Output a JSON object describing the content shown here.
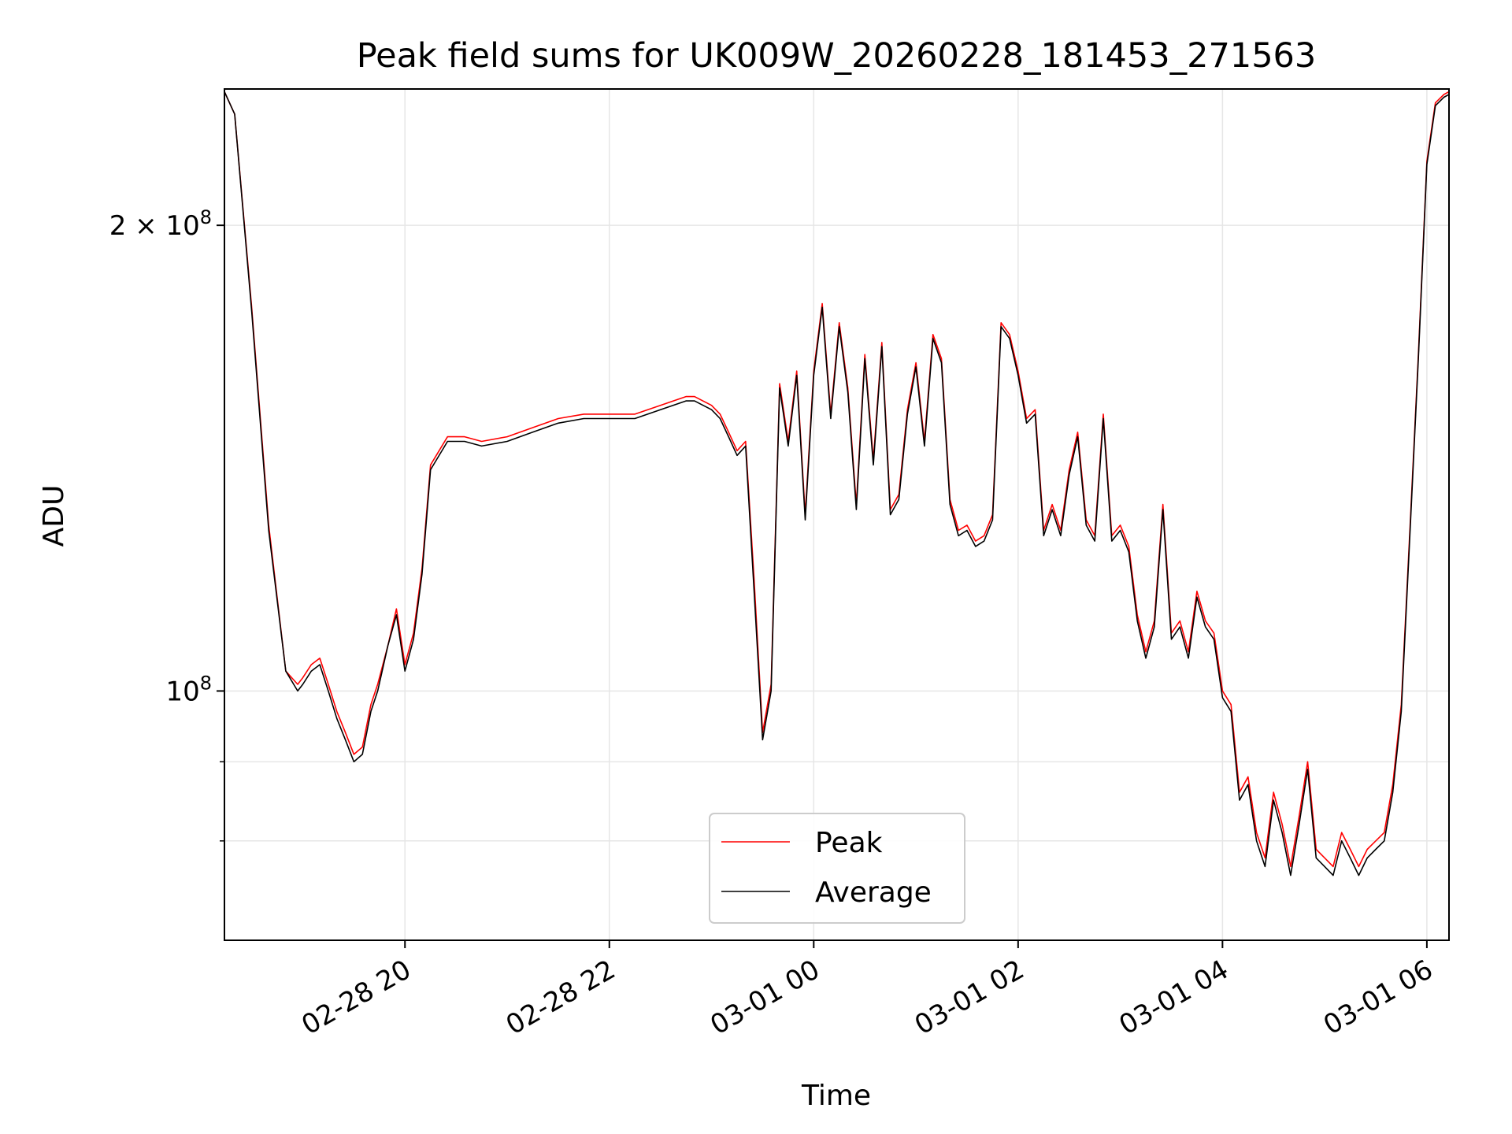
{
  "chart_data": {
    "type": "line",
    "title": "Peak field sums for UK009W_20260228_181453_271563",
    "xlabel": "Time",
    "ylabel": "ADU",
    "x_scale": "time",
    "y_scale": "log",
    "xlim": [
      "2026-02-28 18:14",
      "2026-03-01 06:13"
    ],
    "ylim": [
      69000000,
      245000000
    ],
    "x_ticks": [
      {
        "value": "2026-02-28 20:00",
        "label": "02-28 20"
      },
      {
        "value": "2026-02-28 22:00",
        "label": "02-28 22"
      },
      {
        "value": "2026-03-01 00:00",
        "label": "03-01 00"
      },
      {
        "value": "2026-03-01 02:00",
        "label": "03-01 02"
      },
      {
        "value": "2026-03-01 04:00",
        "label": "03-01 04"
      },
      {
        "value": "2026-03-01 06:00",
        "label": "03-01 06"
      }
    ],
    "y_major_ticks": [
      {
        "value": 100000000,
        "base": "10",
        "exponent": "8"
      },
      {
        "value": 200000000,
        "mantissa": "2",
        "base": "10",
        "exponent": "8"
      }
    ],
    "y_minor_ticks": [
      80000000,
      90000000
    ],
    "grid": true,
    "legend_position": "lower center",
    "colors": {
      "peak": "#ff0000",
      "average": "#000000",
      "grid": "#e6e6e6"
    },
    "x": [
      "2026-02-28 18:14",
      "2026-02-28 18:20",
      "2026-02-28 18:30",
      "2026-02-28 18:40",
      "2026-02-28 18:50",
      "2026-02-28 18:57",
      "2026-02-28 19:00",
      "2026-02-28 19:05",
      "2026-02-28 19:10",
      "2026-02-28 19:15",
      "2026-02-28 19:20",
      "2026-02-28 19:25",
      "2026-02-28 19:30",
      "2026-02-28 19:35",
      "2026-02-28 19:40",
      "2026-02-28 19:44",
      "2026-02-28 19:50",
      "2026-02-28 19:55",
      "2026-02-28 20:00",
      "2026-02-28 20:05",
      "2026-02-28 20:10",
      "2026-02-28 20:15",
      "2026-02-28 20:25",
      "2026-02-28 20:35",
      "2026-02-28 20:45",
      "2026-02-28 21:00",
      "2026-02-28 21:15",
      "2026-02-28 21:30",
      "2026-02-28 21:45",
      "2026-02-28 22:00",
      "2026-02-28 22:15",
      "2026-02-28 22:30",
      "2026-02-28 22:45",
      "2026-02-28 22:50",
      "2026-02-28 23:00",
      "2026-02-28 23:05",
      "2026-02-28 23:10",
      "2026-02-28 23:15",
      "2026-02-28 23:20",
      "2026-02-28 23:25",
      "2026-02-28 23:30",
      "2026-02-28 23:35",
      "2026-02-28 23:40",
      "2026-02-28 23:45",
      "2026-02-28 23:50",
      "2026-02-28 23:55",
      "2026-03-01 00:00",
      "2026-03-01 00:05",
      "2026-03-01 00:10",
      "2026-03-01 00:15",
      "2026-03-01 00:20",
      "2026-03-01 00:25",
      "2026-03-01 00:30",
      "2026-03-01 00:35",
      "2026-03-01 00:40",
      "2026-03-01 00:45",
      "2026-03-01 00:50",
      "2026-03-01 00:55",
      "2026-03-01 01:00",
      "2026-03-01 01:05",
      "2026-03-01 01:10",
      "2026-03-01 01:15",
      "2026-03-01 01:20",
      "2026-03-01 01:25",
      "2026-03-01 01:30",
      "2026-03-01 01:35",
      "2026-03-01 01:40",
      "2026-03-01 01:45",
      "2026-03-01 01:50",
      "2026-03-01 01:55",
      "2026-03-01 02:00",
      "2026-03-01 02:05",
      "2026-03-01 02:10",
      "2026-03-01 02:15",
      "2026-03-01 02:20",
      "2026-03-01 02:25",
      "2026-03-01 02:30",
      "2026-03-01 02:35",
      "2026-03-01 02:40",
      "2026-03-01 02:45",
      "2026-03-01 02:50",
      "2026-03-01 02:55",
      "2026-03-01 03:00",
      "2026-03-01 03:05",
      "2026-03-01 03:10",
      "2026-03-01 03:15",
      "2026-03-01 03:20",
      "2026-03-01 03:25",
      "2026-03-01 03:30",
      "2026-03-01 03:35",
      "2026-03-01 03:40",
      "2026-03-01 03:45",
      "2026-03-01 03:50",
      "2026-03-01 03:55",
      "2026-03-01 04:00",
      "2026-03-01 04:05",
      "2026-03-01 04:10",
      "2026-03-01 04:15",
      "2026-03-01 04:20",
      "2026-03-01 04:25",
      "2026-03-01 04:30",
      "2026-03-01 04:35",
      "2026-03-01 04:40",
      "2026-03-01 04:45",
      "2026-03-01 04:50",
      "2026-03-01 04:55",
      "2026-03-01 05:00",
      "2026-03-01 05:05",
      "2026-03-01 05:10",
      "2026-03-01 05:15",
      "2026-03-01 05:20",
      "2026-03-01 05:25",
      "2026-03-01 05:30",
      "2026-03-01 05:35",
      "2026-03-01 05:40",
      "2026-03-01 05:45",
      "2026-03-01 05:50",
      "2026-03-01 05:55",
      "2026-03-01 06:00",
      "2026-03-01 06:05",
      "2026-03-01 06:10",
      "2026-03-01 06:13"
    ],
    "series": [
      {
        "name": "Peak",
        "values": [
          244000000,
          236000000,
          177000000,
          128000000,
          103000000,
          101000000,
          102000000,
          104000000,
          105000000,
          101000000,
          97000000,
          94000000,
          91000000,
          92000000,
          98000000,
          101000000,
          107000000,
          113000000,
          104000000,
          109000000,
          120000000,
          140000000,
          146000000,
          146000000,
          145000000,
          146000000,
          148000000,
          150000000,
          151000000,
          151000000,
          151000000,
          153000000,
          155000000,
          155000000,
          153000000,
          151000000,
          147000000,
          143000000,
          145000000,
          118000000,
          94000000,
          101000000,
          158000000,
          145000000,
          161000000,
          130000000,
          161000000,
          178000000,
          151000000,
          173000000,
          157000000,
          132000000,
          165000000,
          141000000,
          168000000,
          131000000,
          134000000,
          152000000,
          163000000,
          145000000,
          170000000,
          164000000,
          133000000,
          127000000,
          128000000,
          125000000,
          126000000,
          130000000,
          173000000,
          170000000,
          161000000,
          150000000,
          152000000,
          127000000,
          132000000,
          127000000,
          139000000,
          147000000,
          129000000,
          126000000,
          151000000,
          126000000,
          128000000,
          124000000,
          112000000,
          106000000,
          111000000,
          132000000,
          109000000,
          111000000,
          106000000,
          116000000,
          111000000,
          109000000,
          100000000,
          98000000,
          86000000,
          88000000,
          81000000,
          78000000,
          86000000,
          82000000,
          77000000,
          83000000,
          90000000,
          79000000,
          78000000,
          77000000,
          81000000,
          79000000,
          77000000,
          79000000,
          80000000,
          81000000,
          87000000,
          98000000,
          127000000,
          165000000,
          220000000,
          240000000,
          243000000,
          244000000
        ]
      },
      {
        "name": "Average",
        "values": [
          244000000,
          236000000,
          176000000,
          127000000,
          103000000,
          100000000,
          101000000,
          103000000,
          104000000,
          100000000,
          96000000,
          93000000,
          90000000,
          91000000,
          97000000,
          100000000,
          107000000,
          112000000,
          103000000,
          108000000,
          119000000,
          139000000,
          145000000,
          145000000,
          144000000,
          145000000,
          147000000,
          149000000,
          150000000,
          150000000,
          150000000,
          152000000,
          154000000,
          154000000,
          152000000,
          150000000,
          146000000,
          142000000,
          144000000,
          116000000,
          93000000,
          100000000,
          157000000,
          144000000,
          160000000,
          129000000,
          160000000,
          177000000,
          150000000,
          172000000,
          156000000,
          131000000,
          164000000,
          140000000,
          167000000,
          130000000,
          133000000,
          151000000,
          162000000,
          144000000,
          169000000,
          163000000,
          132000000,
          126000000,
          127000000,
          124000000,
          125000000,
          129000000,
          172000000,
          169000000,
          160000000,
          149000000,
          151000000,
          126000000,
          131000000,
          126000000,
          138000000,
          146000000,
          128000000,
          125000000,
          150000000,
          125000000,
          127000000,
          123000000,
          111000000,
          105000000,
          110000000,
          131000000,
          108000000,
          110000000,
          105000000,
          115000000,
          110000000,
          108000000,
          99000000,
          97000000,
          85000000,
          87000000,
          80000000,
          77000000,
          85000000,
          81000000,
          76000000,
          82000000,
          89000000,
          78000000,
          77000000,
          76000000,
          80000000,
          78000000,
          76000000,
          78000000,
          79000000,
          80000000,
          86000000,
          97000000,
          126000000,
          164000000,
          219000000,
          239000000,
          242000000,
          243000000
        ]
      }
    ]
  }
}
